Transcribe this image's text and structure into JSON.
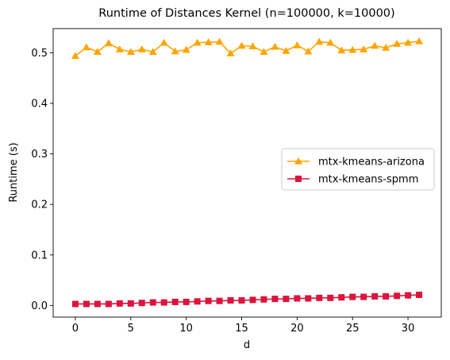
{
  "chart_data": {
    "type": "line",
    "title": "Runtime of Distances Kernel (n=100000, k=10000)",
    "xlabel": "d",
    "ylabel": "Runtime (s)",
    "xlim": [
      -2,
      33
    ],
    "ylim": [
      -0.023,
      0.548
    ],
    "xticks": [
      0,
      5,
      10,
      15,
      20,
      25,
      30
    ],
    "yticks": [
      0.0,
      0.1,
      0.2,
      0.3,
      0.4,
      0.5
    ],
    "ytick_labels": [
      "0.0",
      "0.1",
      "0.2",
      "0.3",
      "0.4",
      "0.5"
    ],
    "grid": false,
    "legend_position": "center-right",
    "x": [
      0,
      1,
      2,
      3,
      4,
      5,
      6,
      7,
      8,
      9,
      10,
      11,
      12,
      13,
      14,
      15,
      16,
      17,
      18,
      19,
      20,
      21,
      22,
      23,
      24,
      25,
      26,
      27,
      28,
      29,
      30,
      31
    ],
    "series": [
      {
        "name": "mtx-kmeans-arizona",
        "color": "#FFA500",
        "marker": "triangle",
        "values": [
          0.494,
          0.511,
          0.502,
          0.519,
          0.507,
          0.502,
          0.507,
          0.502,
          0.52,
          0.503,
          0.506,
          0.52,
          0.521,
          0.522,
          0.499,
          0.514,
          0.513,
          0.502,
          0.512,
          0.504,
          0.515,
          0.503,
          0.522,
          0.52,
          0.505,
          0.506,
          0.507,
          0.514,
          0.51,
          0.518,
          0.52,
          0.523
        ]
      },
      {
        "name": "mtx-kmeans-spmm",
        "color": "#DC143C",
        "marker": "square",
        "values": [
          0.003,
          0.003,
          0.003,
          0.003,
          0.004,
          0.004,
          0.005,
          0.006,
          0.006,
          0.007,
          0.007,
          0.008,
          0.009,
          0.009,
          0.01,
          0.01,
          0.011,
          0.012,
          0.013,
          0.013,
          0.014,
          0.014,
          0.015,
          0.015,
          0.016,
          0.017,
          0.017,
          0.018,
          0.018,
          0.019,
          0.02,
          0.021
        ]
      }
    ]
  }
}
